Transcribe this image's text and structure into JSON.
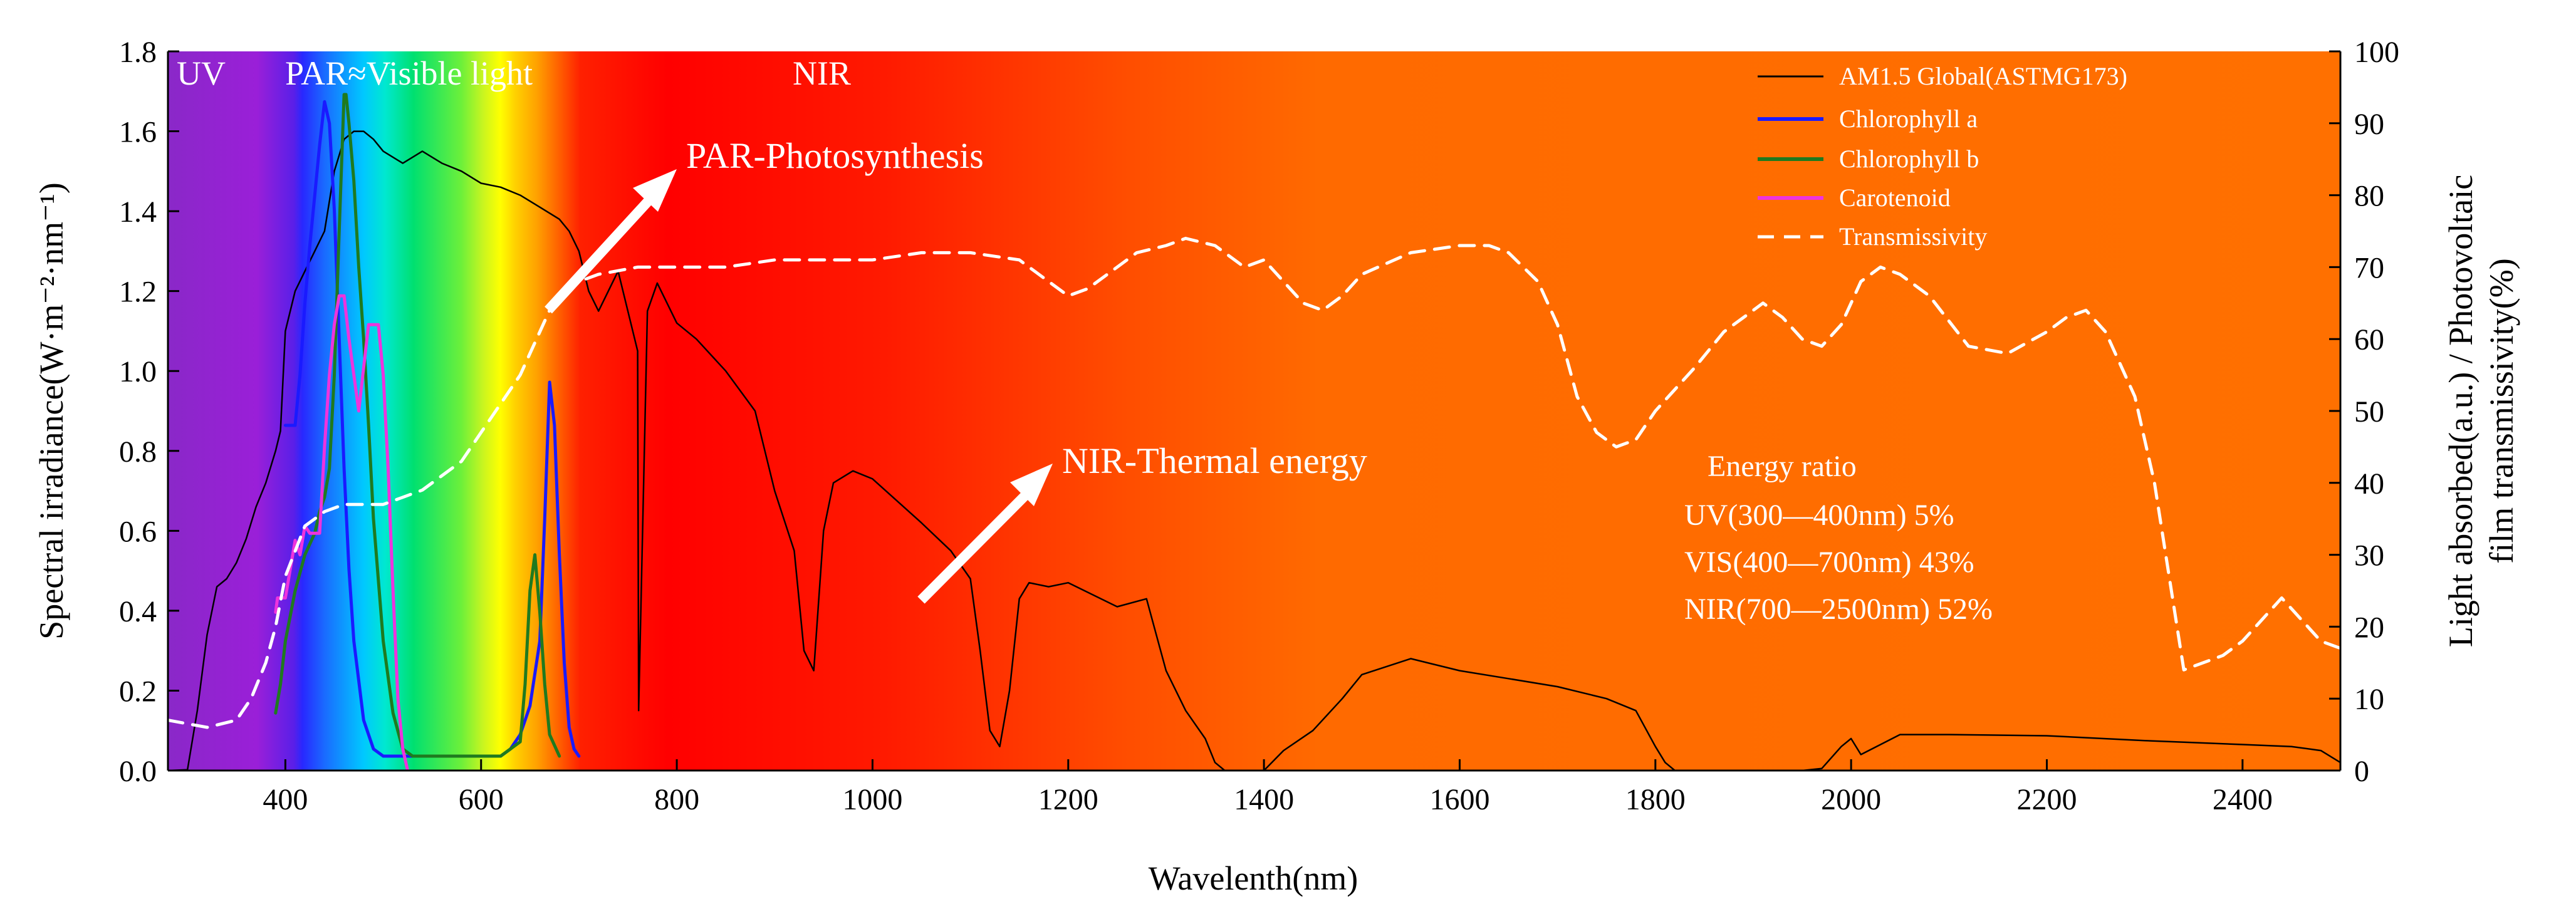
{
  "chart_data": {
    "type": "line",
    "xlabel": "Wavelenth(nm)",
    "ylabel_left": "Spectral irradiance(W·m⁻²·nm⁻¹)",
    "ylabel_right_line1": "Light absorbed(a.u.) / Photovoltaic",
    "ylabel_right_line2": "film transmissivity(%)",
    "xlim": [
      280,
      2500
    ],
    "ylim_left": [
      0,
      1.8
    ],
    "ylim_right": [
      0,
      100
    ],
    "x_ticks": [
      400,
      600,
      800,
      1000,
      1200,
      1400,
      1600,
      1800,
      2000,
      2200,
      2400
    ],
    "x_tick_labels": [
      "400",
      "600",
      "800",
      "1000",
      "1200",
      "1400",
      "1600",
      "1800",
      "2000",
      "2200",
      "2400"
    ],
    "y_left_ticks": [
      0,
      0.2,
      0.4,
      0.6,
      0.8,
      1.0,
      1.2,
      1.4,
      1.6,
      1.8
    ],
    "y_left_tick_labels": [
      "0.0",
      "0.2",
      "0.4",
      "0.6",
      "0.8",
      "1.0",
      "1.2",
      "1.4",
      "1.6",
      "1.8"
    ],
    "y_right_ticks": [
      0,
      10,
      20,
      30,
      40,
      50,
      60,
      70,
      80,
      90,
      100
    ],
    "y_right_tick_labels": [
      "0",
      "10",
      "20",
      "30",
      "40",
      "50",
      "60",
      "70",
      "80",
      "90",
      "100"
    ],
    "bands": {
      "uv": "UV",
      "par": "PAR≈Visible light",
      "nir": "NIR"
    },
    "annotations": {
      "par_photosynthesis": "PAR-Photosynthesis",
      "nir_thermal": "NIR-Thermal energy"
    },
    "energy_ratio": {
      "title": "Energy ratio",
      "lines": [
        "UV(300—400nm) 5%",
        "VIS(400—700nm) 43%",
        "NIR(700—2500nm) 52%"
      ]
    },
    "series": [
      {
        "name": "AM1.5 Global(ASTMG173)",
        "axis": "left",
        "color": "#000000",
        "dash": "none",
        "width": 2.5,
        "x": [
          280,
          300,
          310,
          320,
          330,
          340,
          350,
          360,
          370,
          380,
          390,
          395,
          400,
          410,
          420,
          430,
          440,
          450,
          460,
          470,
          480,
          490,
          500,
          520,
          540,
          560,
          580,
          600,
          620,
          640,
          660,
          680,
          690,
          700,
          710,
          720,
          740,
          760,
          761,
          770,
          780,
          800,
          820,
          850,
          880,
          900,
          920,
          930,
          940,
          950,
          960,
          980,
          1000,
          1050,
          1080,
          1100,
          1110,
          1120,
          1130,
          1140,
          1150,
          1160,
          1180,
          1200,
          1250,
          1280,
          1300,
          1320,
          1340,
          1350,
          1360,
          1380,
          1400,
          1420,
          1450,
          1480,
          1500,
          1550,
          1600,
          1650,
          1700,
          1750,
          1780,
          1800,
          1810,
          1820,
          1900,
          1950,
          1970,
          1990,
          2000,
          2010,
          2050,
          2100,
          2200,
          2300,
          2400,
          2450,
          2480,
          2500
        ],
        "y": [
          0,
          0.002,
          0.15,
          0.34,
          0.46,
          0.48,
          0.52,
          0.58,
          0.66,
          0.72,
          0.8,
          0.85,
          1.1,
          1.2,
          1.25,
          1.3,
          1.35,
          1.5,
          1.58,
          1.6,
          1.6,
          1.58,
          1.55,
          1.52,
          1.55,
          1.52,
          1.5,
          1.47,
          1.46,
          1.44,
          1.41,
          1.38,
          1.35,
          1.3,
          1.2,
          1.15,
          1.25,
          1.05,
          0.15,
          1.15,
          1.22,
          1.12,
          1.08,
          1.0,
          0.9,
          0.7,
          0.55,
          0.3,
          0.25,
          0.6,
          0.72,
          0.75,
          0.73,
          0.62,
          0.55,
          0.48,
          0.3,
          0.1,
          0.06,
          0.2,
          0.43,
          0.47,
          0.46,
          0.47,
          0.41,
          0.43,
          0.25,
          0.15,
          0.08,
          0.02,
          0,
          0,
          0,
          0.05,
          0.1,
          0.18,
          0.24,
          0.28,
          0.25,
          0.23,
          0.21,
          0.18,
          0.15,
          0.06,
          0.02,
          0,
          0,
          0,
          0.005,
          0.06,
          0.08,
          0.04,
          0.09,
          0.09,
          0.087,
          0.075,
          0.065,
          0.06,
          0.05,
          0.02
        ]
      },
      {
        "name": "Chlorophyll a",
        "axis": "right",
        "color": "#1a1aff",
        "dash": "none",
        "width": 5,
        "x": [
          400,
          405,
          410,
          415,
          420,
          425,
          430,
          435,
          440,
          445,
          450,
          455,
          460,
          465,
          470,
          480,
          490,
          500,
          510,
          520,
          530,
          600,
          620,
          630,
          640,
          650,
          660,
          665,
          670,
          675,
          680,
          685,
          690,
          695,
          700
        ],
        "y": [
          48,
          48,
          48,
          55,
          65,
          73,
          80,
          87,
          93,
          90,
          78,
          60,
          42,
          28,
          18,
          7,
          3,
          2,
          2,
          2,
          2,
          2,
          2,
          3,
          5,
          9,
          18,
          35,
          54,
          48,
          30,
          15,
          6,
          3,
          2
        ]
      },
      {
        "name": "Chlorophyll b",
        "axis": "right",
        "color": "#1f7a1f",
        "dash": "none",
        "width": 5,
        "x": [
          390,
          395,
          400,
          410,
          420,
          430,
          435,
          440,
          445,
          450,
          455,
          460,
          462,
          465,
          470,
          475,
          480,
          485,
          490,
          500,
          510,
          520,
          530,
          550,
          600,
          620,
          640,
          645,
          650,
          655,
          660,
          665,
          670,
          680
        ],
        "y": [
          8,
          12,
          18,
          25,
          30,
          33,
          36,
          38,
          42,
          55,
          75,
          94,
          94,
          90,
          82,
          70,
          60,
          48,
          35,
          18,
          8,
          3,
          2,
          2,
          2,
          2,
          4,
          12,
          25,
          30,
          22,
          12,
          5,
          2
        ]
      },
      {
        "name": "Carotenoid",
        "axis": "right",
        "color": "#ee33dd",
        "dash": "none",
        "width": 5,
        "x": [
          390,
          392,
          395,
          400,
          405,
          410,
          415,
          420,
          425,
          430,
          435,
          440,
          445,
          450,
          455,
          460,
          465,
          470,
          475,
          480,
          485,
          490,
          495,
          500,
          505,
          510,
          515,
          520,
          525
        ],
        "y": [
          22,
          24,
          24,
          24,
          28,
          32,
          30,
          34,
          33,
          33,
          33,
          45,
          55,
          62,
          66,
          66,
          60,
          55,
          50,
          56,
          62,
          62,
          62,
          55,
          42,
          25,
          10,
          3,
          0
        ]
      },
      {
        "name": "Transmissivity",
        "axis": "right",
        "color": "#ffffff",
        "dash": "24 16",
        "width": 5,
        "x": [
          280,
          320,
          350,
          365,
          380,
          390,
          400,
          420,
          440,
          460,
          480,
          500,
          520,
          540,
          560,
          580,
          600,
          620,
          640,
          650,
          660,
          670,
          680,
          700,
          720,
          760,
          800,
          850,
          900,
          950,
          1000,
          1050,
          1100,
          1150,
          1180,
          1200,
          1220,
          1250,
          1270,
          1300,
          1320,
          1350,
          1380,
          1400,
          1420,
          1440,
          1460,
          1480,
          1500,
          1550,
          1600,
          1630,
          1650,
          1680,
          1700,
          1720,
          1740,
          1760,
          1780,
          1800,
          1840,
          1870,
          1890,
          1910,
          1930,
          1950,
          1970,
          1990,
          2010,
          2030,
          2050,
          2080,
          2120,
          2160,
          2200,
          2220,
          2240,
          2260,
          2290,
          2310,
          2340,
          2380,
          2400,
          2420,
          2440,
          2460,
          2480,
          2500
        ],
        "y": [
          7,
          6,
          7,
          10,
          15,
          20,
          27,
          34,
          36,
          37,
          37,
          37,
          38,
          39,
          41,
          43,
          47,
          51,
          55,
          58,
          61,
          64,
          66,
          68,
          69,
          70,
          70,
          70,
          71,
          71,
          71,
          72,
          72,
          71,
          68,
          66,
          67,
          70,
          72,
          73,
          74,
          73,
          70,
          71,
          68,
          65,
          64,
          66,
          69,
          72,
          73,
          73,
          72,
          68,
          62,
          52,
          47,
          45,
          46,
          50,
          56,
          61,
          63,
          65,
          63,
          60,
          59,
          62,
          68,
          70,
          69,
          66,
          59,
          58,
          61,
          63,
          64,
          61,
          52,
          40,
          14,
          16,
          18,
          21,
          24,
          21,
          18,
          17
        ]
      }
    ]
  }
}
